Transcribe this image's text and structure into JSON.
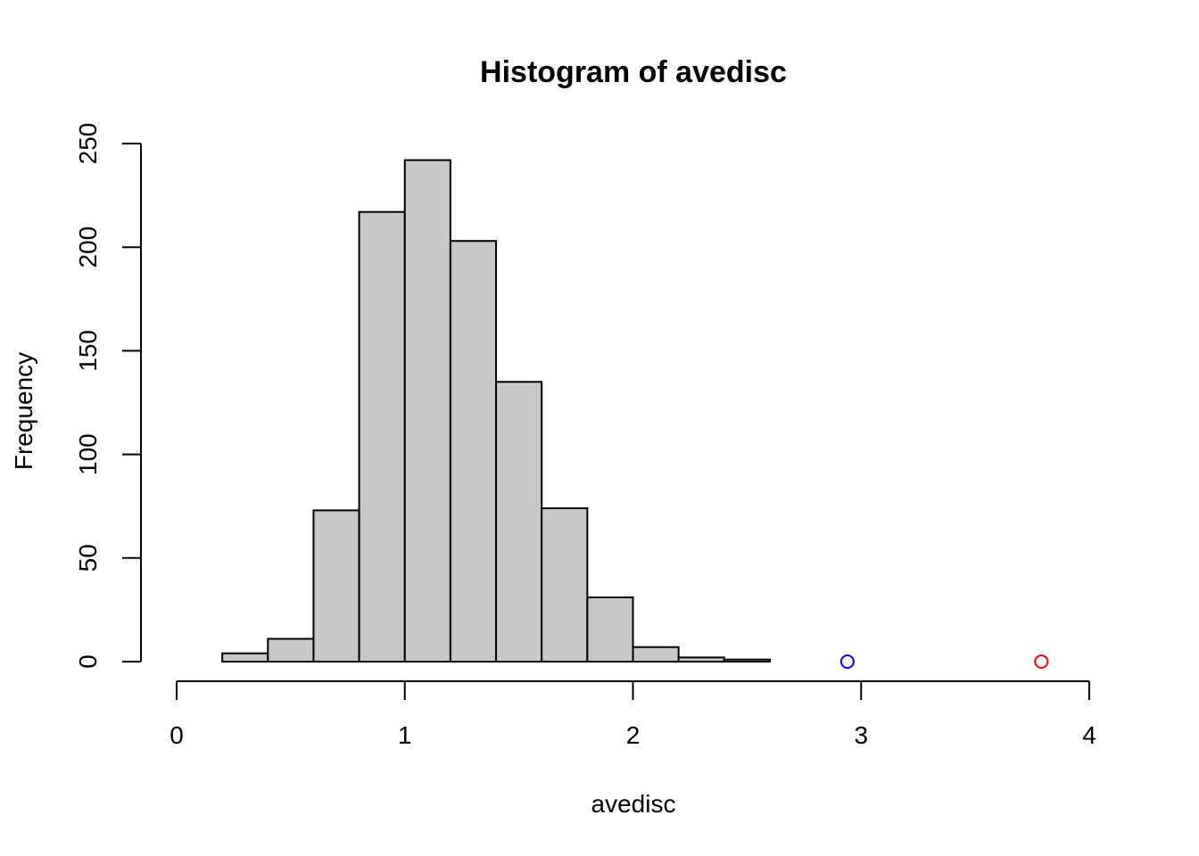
{
  "chart_data": {
    "type": "bar",
    "title": "Histogram of avedisc",
    "xlabel": "avedisc",
    "ylabel": "Frequency",
    "xlim": [
      0,
      4
    ],
    "ylim": [
      0,
      250
    ],
    "x_ticks": [
      "0",
      "1",
      "2",
      "3",
      "4"
    ],
    "y_ticks": [
      "0",
      "50",
      "100",
      "150",
      "200",
      "250"
    ],
    "bin_edges": [
      0.2,
      0.4,
      0.6,
      0.8,
      1.0,
      1.2,
      1.4,
      1.6,
      1.8,
      2.0,
      2.2,
      2.4,
      2.6
    ],
    "values": [
      4,
      11,
      73,
      217,
      242,
      203,
      135,
      74,
      31,
      7,
      2,
      1
    ],
    "points": [
      {
        "x": 2.94,
        "y": 0,
        "color": "#0000ff"
      },
      {
        "x": 3.79,
        "y": 0,
        "color": "#ff0000"
      }
    ],
    "bar_color": "#c8c8c8",
    "grid": false
  }
}
